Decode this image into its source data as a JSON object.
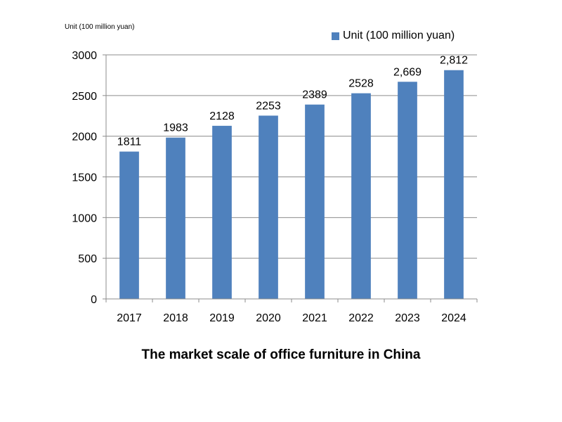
{
  "chart_data": {
    "type": "bar",
    "title": "The market scale of office furniture in China",
    "unit_note": "Unit (100 million yuan)",
    "categories": [
      "2017",
      "2018",
      "2019",
      "2020",
      "2021",
      "2022",
      "2023",
      "2024"
    ],
    "series": [
      {
        "name": "Unit (100 million yuan)",
        "values": [
          1811,
          1983,
          2128,
          2253,
          2389,
          2528,
          2669,
          2812
        ],
        "labels": [
          "1811",
          "1983",
          "2128",
          "2253",
          "2389",
          "2528",
          "2,669",
          "2,812"
        ],
        "color": "#4f81bd"
      }
    ],
    "ylim": [
      0,
      3000
    ],
    "yticks": [
      "0",
      "500",
      "1000",
      "1500",
      "2000",
      "2500",
      "3000"
    ],
    "ytick_values": [
      0,
      500,
      1000,
      1500,
      2000,
      2500,
      3000
    ],
    "grid": true,
    "legend_position": "top-right"
  }
}
